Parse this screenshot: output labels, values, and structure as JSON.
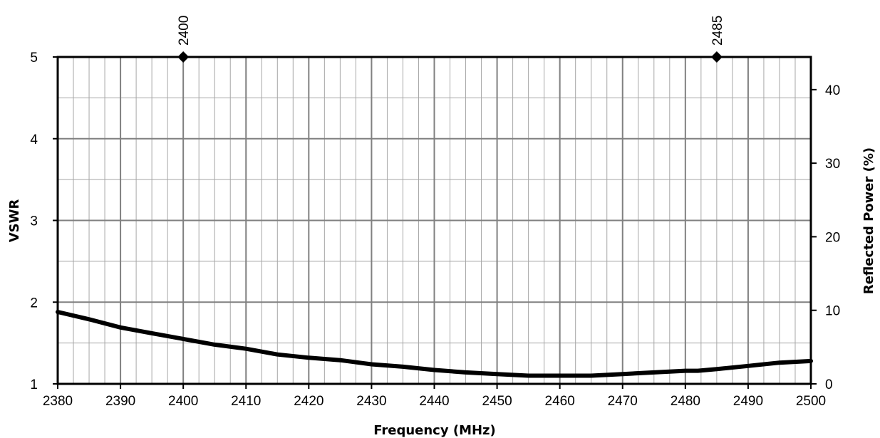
{
  "chart_data": {
    "type": "line",
    "title": "",
    "xlabel": "Frequency (MHz)",
    "ylabel": "VSWR",
    "y2label": "Reflected Power (%)",
    "xlim": [
      2380,
      2500
    ],
    "ylim": [
      1,
      5
    ],
    "y2lim": [
      0,
      44.44
    ],
    "x_ticks": [
      "2380",
      "2390",
      "2400",
      "2410",
      "2420",
      "2430",
      "2440",
      "2450",
      "2460",
      "2470",
      "2480",
      "2490",
      "2500"
    ],
    "y_ticks": [
      "1",
      "2",
      "3",
      "4",
      "5"
    ],
    "y2_ticks": [
      "0",
      "10",
      "20",
      "30",
      "40"
    ],
    "x_minor_step": 2.5,
    "y_minor_step": 0.5,
    "grid": true,
    "legend": "none",
    "line_color": "#000000",
    "series": [
      {
        "x": [
          2380,
          2385,
          2390,
          2395,
          2400,
          2405,
          2410,
          2415,
          2420,
          2425,
          2430,
          2435,
          2440,
          2445,
          2450,
          2455,
          2460,
          2465,
          2470,
          2475,
          2480,
          2482,
          2485,
          2490,
          2495,
          2500
        ],
        "values": [
          1.88,
          1.79,
          1.69,
          1.62,
          1.55,
          1.48,
          1.43,
          1.36,
          1.32,
          1.29,
          1.24,
          1.21,
          1.17,
          1.14,
          1.12,
          1.1,
          1.1,
          1.1,
          1.12,
          1.14,
          1.16,
          1.16,
          1.18,
          1.22,
          1.26,
          1.28
        ]
      }
    ],
    "markers": [
      {
        "x": 2400,
        "label": "2400"
      },
      {
        "x": 2485,
        "label": "2485"
      }
    ]
  }
}
